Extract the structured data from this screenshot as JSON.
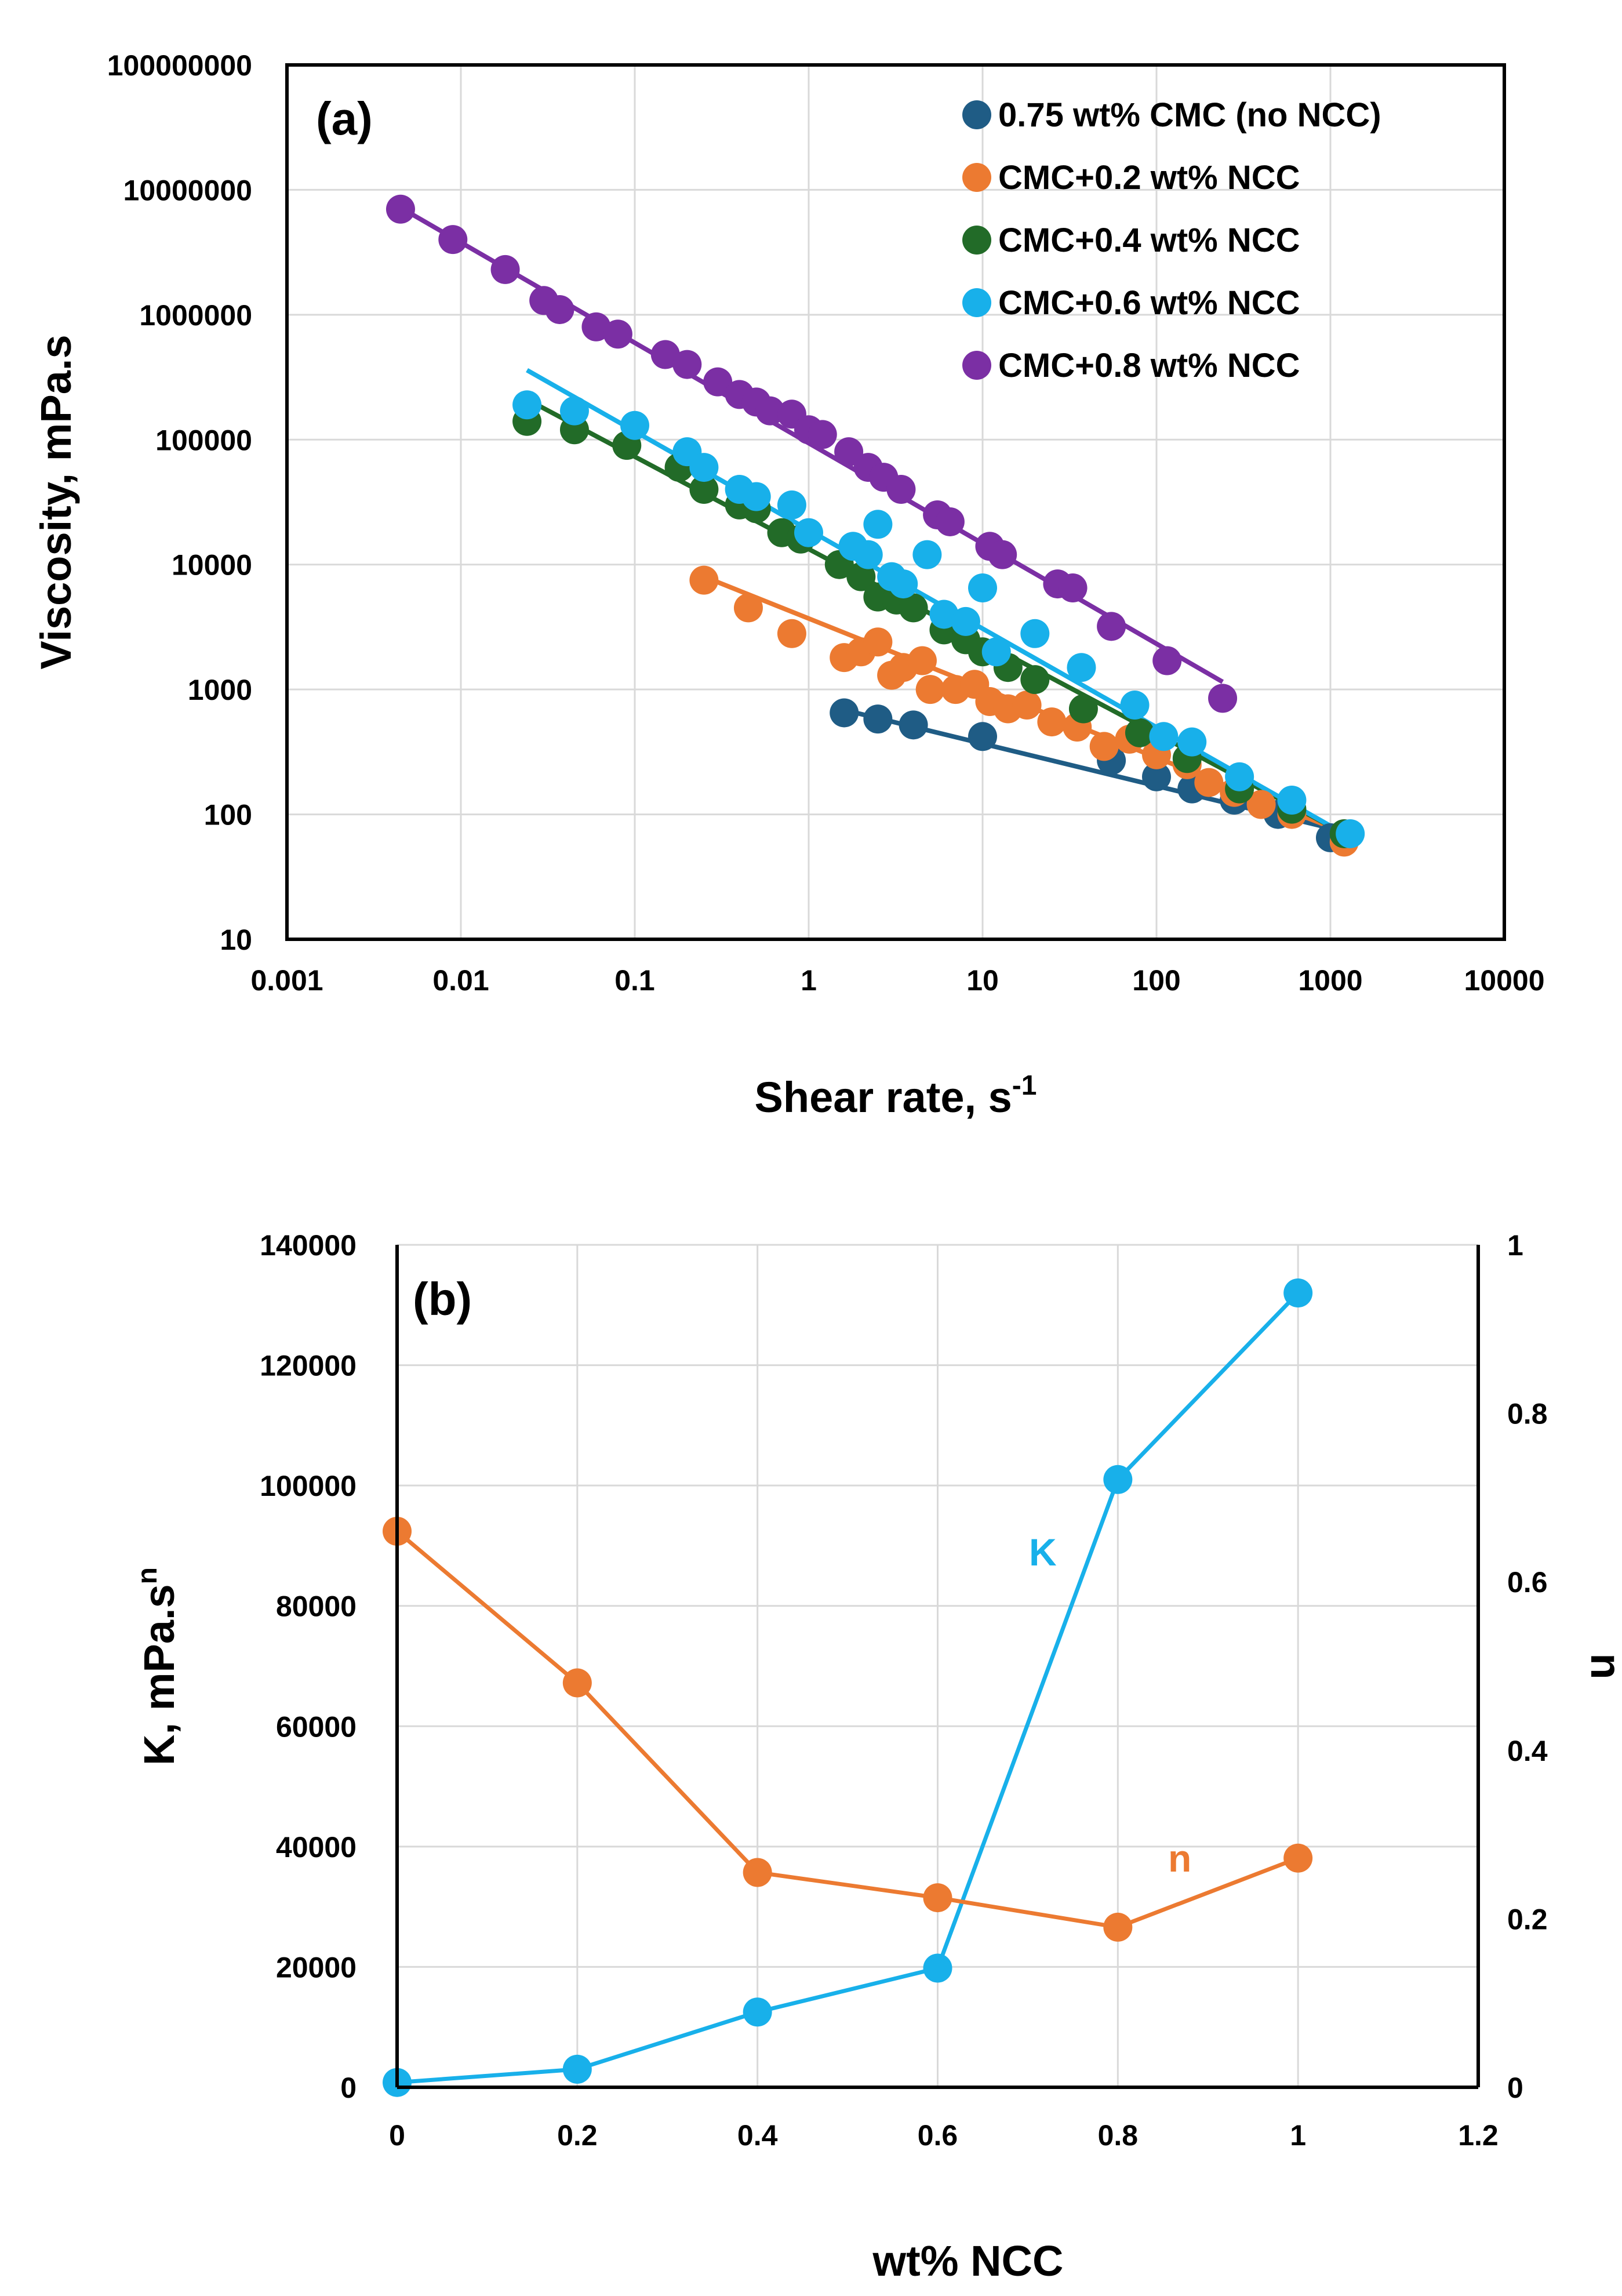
{
  "colors": {
    "cmc_base": "#1f5c85",
    "ncc_02": "#ec7a31",
    "ncc_04": "#226b28",
    "ncc_06": "#18b0ea",
    "ncc_08": "#7b2fa4",
    "grid": "#d9d9d9",
    "axis": "#000000"
  },
  "chart_data": [
    {
      "panel": "(a)",
      "type": "scatter",
      "xscale": "log",
      "yscale": "log",
      "xlabel": "Shear rate, s",
      "xlabel_sup": "-1",
      "ylabel": "Viscosity, mPa.s",
      "xlim": [
        0.001,
        10000
      ],
      "ylim": [
        10,
        100000000
      ],
      "xticks": [
        "0.001",
        "0.01",
        "0.1",
        "1",
        "10",
        "100",
        "1000",
        "10000"
      ],
      "yticks": [
        "10",
        "100",
        "1000",
        "10000",
        "100000",
        "1000000",
        "10000000",
        "100000000"
      ],
      "grid": true,
      "legend_position": "top-right",
      "series": [
        {
          "name": "0.75 wt% CMC (no NCC)",
          "color_key": "cmc_base",
          "x": [
            1.6,
            2.5,
            4.0,
            10,
            55,
            100,
            160,
            280,
            500,
            1000
          ],
          "y": [
            650,
            580,
            520,
            420,
            270,
            200,
            160,
            130,
            100,
            65
          ],
          "fit": [
            [
              1.5,
              700
            ],
            [
              1100,
              75
            ]
          ]
        },
        {
          "name": "CMC+0.2 wt% NCC",
          "color_key": "ncc_02",
          "x": [
            0.25,
            0.45,
            0.8,
            1.6,
            2.0,
            2.5,
            3.0,
            3.5,
            4.5,
            5.0,
            7.0,
            9.0,
            11,
            14,
            18,
            25,
            35,
            50,
            70,
            100,
            150,
            200,
            280,
            400,
            600,
            1200
          ],
          "y": [
            7500,
            4500,
            2800,
            1800,
            2000,
            2400,
            1300,
            1500,
            1700,
            1000,
            1000,
            1100,
            800,
            700,
            750,
            550,
            500,
            350,
            400,
            300,
            250,
            180,
            150,
            120,
            100,
            60
          ],
          "fit": [
            [
              0.25,
              8000
            ],
            [
              1100,
              75
            ]
          ]
        },
        {
          "name": "CMC+0.4 wt% NCC",
          "color_key": "ncc_04",
          "x": [
            0.024,
            0.045,
            0.09,
            0.18,
            0.25,
            0.4,
            0.5,
            0.7,
            0.9,
            1.5,
            2.0,
            2.5,
            3.2,
            4.0,
            6.0,
            8.0,
            10,
            14,
            20,
            38,
            80,
            150,
            300,
            600,
            1200
          ],
          "y": [
            140000,
            120000,
            90000,
            60000,
            40000,
            30000,
            28000,
            18000,
            16000,
            10000,
            8000,
            5500,
            5200,
            4500,
            3000,
            2500,
            2000,
            1500,
            1200,
            700,
            450,
            280,
            160,
            110,
            70
          ],
          "fit": [
            [
              0.024,
              210000
            ],
            [
              1100,
              75
            ]
          ]
        },
        {
          "name": "CMC+0.6 wt% NCC",
          "color_key": "ncc_06",
          "x": [
            0.024,
            0.045,
            0.1,
            0.2,
            0.25,
            0.4,
            0.5,
            0.8,
            1.0,
            1.8,
            2.2,
            2.5,
            3.0,
            3.5,
            4.8,
            6.0,
            8.0,
            10,
            12,
            20,
            37,
            75,
            110,
            160,
            300,
            600,
            1300
          ],
          "y": [
            190000,
            170000,
            130000,
            80000,
            60000,
            40000,
            35000,
            30000,
            18000,
            14000,
            12000,
            21000,
            8000,
            7000,
            12000,
            4000,
            3500,
            6500,
            2000,
            2800,
            1500,
            750,
            420,
            380,
            200,
            130,
            70
          ],
          "fit": [
            [
              0.024,
              360000
            ],
            [
              1100,
              75
            ]
          ]
        },
        {
          "name": "CMC+0.8 wt% NCC",
          "color_key": "ncc_08",
          "x": [
            0.0045,
            0.009,
            0.018,
            0.03,
            0.037,
            0.06,
            0.08,
            0.15,
            0.2,
            0.3,
            0.4,
            0.5,
            0.6,
            0.8,
            1.0,
            1.2,
            1.7,
            2.2,
            2.7,
            3.4,
            5.5,
            6.5,
            11,
            13,
            27,
            33,
            55,
            115,
            240
          ],
          "y": [
            7000000,
            4000000,
            2300000,
            1300000,
            1100000,
            800000,
            700000,
            480000,
            400000,
            290000,
            230000,
            200000,
            170000,
            160000,
            120000,
            110000,
            80000,
            60000,
            50000,
            40000,
            25000,
            22000,
            14000,
            12000,
            7000,
            6500,
            3200,
            1700,
            850
          ],
          "fit": [
            [
              0.0045,
              7200000
            ],
            [
              240,
              1150
            ]
          ]
        }
      ]
    },
    {
      "panel": "(b)",
      "type": "line",
      "xlabel": "wt% NCC",
      "ylabel_left": "K, mPa.s",
      "ylabel_left_sup": "n",
      "ylabel_right": "n",
      "xlim": [
        0,
        1.2
      ],
      "ylim_left": [
        0,
        140000
      ],
      "ylim_right": [
        0,
        1
      ],
      "xticks": [
        "0",
        "0.2",
        "0.4",
        "0.6",
        "0.8",
        "1",
        "1.2"
      ],
      "yticks_left": [
        "0",
        "20000",
        "40000",
        "60000",
        "80000",
        "100000",
        "120000",
        "140000"
      ],
      "yticks_right": [
        "0",
        "0.2",
        "0.4",
        "0.6",
        "0.8",
        "1"
      ],
      "grid": true,
      "series": [
        {
          "name": "K",
          "axis": "left",
          "color_key": "ncc_06",
          "x": [
            0,
            0.2,
            0.4,
            0.6,
            0.8,
            1.0
          ],
          "y": [
            800,
            3000,
            12500,
            19800,
            101000,
            132000
          ]
        },
        {
          "name": "n",
          "axis": "right",
          "color_key": "ncc_02",
          "x": [
            0,
            0.2,
            0.4,
            0.6,
            0.8,
            1.0
          ],
          "y": [
            0.66,
            0.48,
            0.255,
            0.225,
            0.19,
            0.272
          ]
        }
      ]
    }
  ]
}
